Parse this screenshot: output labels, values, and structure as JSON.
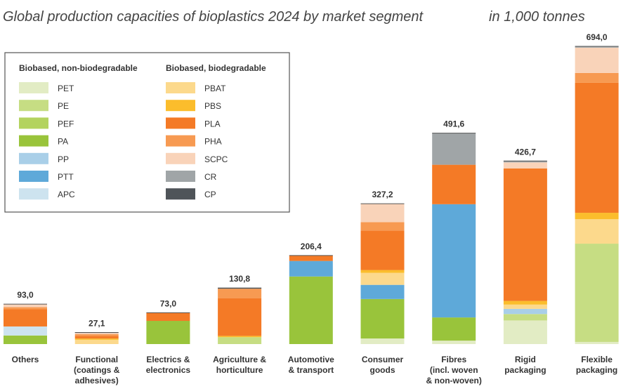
{
  "chart_data": {
    "type": "stacked-bar",
    "title": "Global production capacities of bioplastics 2024 by market segment",
    "subtitle": "in 1,000 tonnes",
    "legend_titles": [
      "Biobased, non-biodegradable",
      "Biobased, biodegradable"
    ],
    "categories": [
      "Others",
      "Functional\n(coatings &\nadhesives)",
      "Electrics &\nelectronics",
      "Agriculture &\nhorticulture",
      "Automotive\n& transport",
      "Consumer\ngoods",
      "Fibres\n(incl. woven\n& non-woven)",
      "Rigid\npackaging",
      "Flexible\npackaging"
    ],
    "totals": [
      93.0,
      27.1,
      73.0,
      130.8,
      206.4,
      327.2,
      491.6,
      426.7,
      694.0
    ],
    "total_labels": [
      "93,0",
      "27,1",
      "73,0",
      "130,8",
      "206,4",
      "327,2",
      "491,6",
      "426,7",
      "694,0"
    ],
    "series": [
      {
        "name": "PET",
        "color": "#e2ecc4",
        "values": [
          0,
          0,
          0,
          0,
          0,
          13,
          8,
          55,
          5
        ]
      },
      {
        "name": "PE",
        "color": "#c6dd83",
        "values": [
          0,
          0,
          0,
          16,
          0,
          0,
          0,
          15,
          229
        ]
      },
      {
        "name": "PEF",
        "color": "#b3d35e",
        "values": [
          0,
          0,
          0,
          0,
          0,
          0,
          0,
          0,
          0
        ]
      },
      {
        "name": "PA",
        "color": "#99c43b",
        "values": [
          20,
          0,
          54,
          0,
          157.5,
          92,
          54,
          0,
          0
        ]
      },
      {
        "name": "PP",
        "color": "#a9cfe8",
        "values": [
          0,
          0,
          0,
          0,
          0,
          0,
          0,
          12,
          0
        ]
      },
      {
        "name": "PTT",
        "color": "#5ea9d9",
        "values": [
          0,
          0,
          0,
          0,
          36.2,
          33,
          264,
          0,
          0
        ]
      },
      {
        "name": "APC",
        "color": "#cde3ef",
        "values": [
          21,
          0,
          0,
          0,
          0,
          0,
          0,
          0,
          0
        ]
      },
      {
        "name": "PBAT",
        "color": "#fcd98c",
        "values": [
          0,
          10,
          0,
          0,
          0,
          28,
          0,
          10,
          57
        ]
      },
      {
        "name": "PBS",
        "color": "#fbbd2c",
        "values": [
          0,
          3,
          0,
          3,
          0,
          6.6,
          0,
          8.5,
          15
        ]
      },
      {
        "name": "PLA",
        "color": "#f47a26",
        "values": [
          40,
          6,
          19,
          88,
          12.7,
          92,
          92,
          309,
          303
        ]
      },
      {
        "name": "PHA",
        "color": "#f79a52",
        "values": [
          5,
          4,
          0,
          22,
          0,
          19.7,
          0,
          0,
          23
        ]
      },
      {
        "name": "SCPC",
        "color": "#f9d3b9",
        "values": [
          7,
          3,
          0,
          0,
          0,
          42.9,
          0,
          14,
          59
        ]
      },
      {
        "name": "CR",
        "color": "#a0a5a7",
        "values": [
          0,
          0,
          0,
          0,
          0,
          0,
          73.6,
          3.2,
          3
        ]
      },
      {
        "name": "CP",
        "color": "#4f5459",
        "values": [
          0,
          1.1,
          0,
          1.8,
          0,
          0,
          0,
          0,
          0
        ]
      }
    ]
  }
}
